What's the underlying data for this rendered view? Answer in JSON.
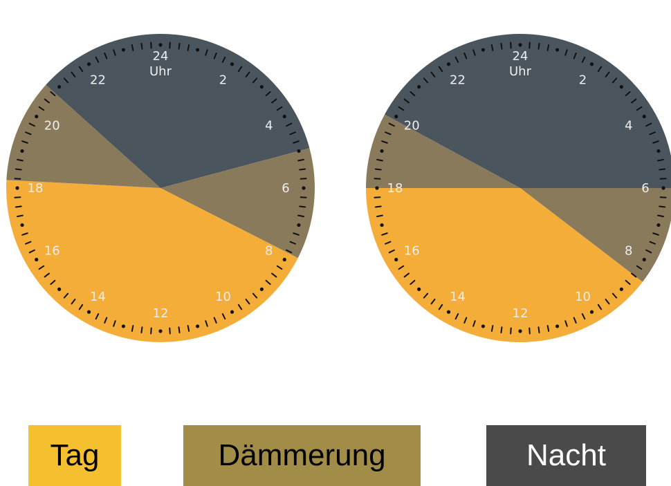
{
  "colors": {
    "tag": "#f5ad3a",
    "daemmerung": "#8a7a5c",
    "nacht": "#4a555d",
    "numbers": "#eeeeee",
    "ticks": "#111111"
  },
  "chart_data": [
    {
      "type": "pie",
      "categories": [
        "Nacht",
        "Dämmerung",
        "Tag",
        "Dämmerung"
      ],
      "segments": [
        {
          "name": "Nacht",
          "start_hour": 20.8,
          "end_hour": 5.0
        },
        {
          "name": "Dämmerung",
          "start_hour": 5.0,
          "end_hour": 7.8
        },
        {
          "name": "Tag",
          "start_hour": 7.8,
          "end_hour": 18.2
        },
        {
          "name": "Dämmerung",
          "start_hour": 18.2,
          "end_hour": 20.8
        }
      ],
      "values": [
        8.2,
        2.8,
        10.4,
        2.6
      ],
      "dial_top_label": [
        "24",
        "Uhr"
      ],
      "hour_labels": [
        "2",
        "4",
        "6",
        "8",
        "10",
        "12",
        "14",
        "16",
        "18",
        "20",
        "22"
      ]
    },
    {
      "type": "pie",
      "categories": [
        "Nacht",
        "Dämmerung",
        "Tag",
        "Dämmerung"
      ],
      "segments": [
        {
          "name": "Nacht",
          "start_hour": 19.9,
          "end_hour": 6.0
        },
        {
          "name": "Dämmerung",
          "start_hour": 6.0,
          "end_hour": 8.5
        },
        {
          "name": "Tag",
          "start_hour": 8.5,
          "end_hour": 18.0
        },
        {
          "name": "Dämmerung",
          "start_hour": 18.0,
          "end_hour": 19.9
        }
      ],
      "values": [
        10.1,
        2.5,
        9.5,
        1.9
      ],
      "dial_top_label": [
        "24",
        "Uhr"
      ],
      "hour_labels": [
        "2",
        "4",
        "6",
        "8",
        "10",
        "12",
        "14",
        "16",
        "18",
        "20",
        "22"
      ]
    }
  ],
  "legend": [
    {
      "label": "Tag",
      "bg": "#f5c030",
      "fg": "#000000"
    },
    {
      "label": "Dämmerung",
      "bg": "#a18c48",
      "fg": "#000000"
    },
    {
      "label": "Nacht",
      "bg": "#4a4a4a",
      "fg": "#ffffff"
    }
  ]
}
